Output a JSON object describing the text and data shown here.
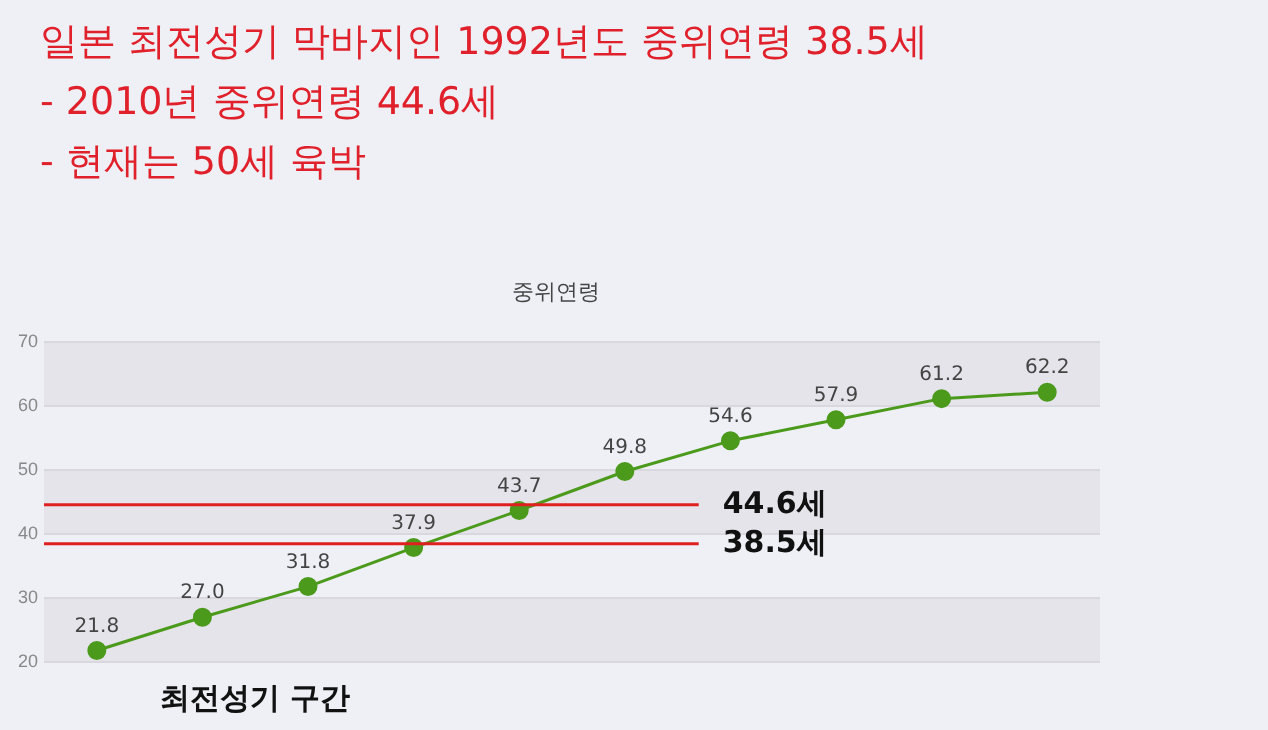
{
  "chart_data": {
    "type": "line",
    "title": "중위연령",
    "categories": [
      null,
      null,
      null,
      null,
      null,
      null,
      null,
      null,
      null,
      null
    ],
    "series": [
      {
        "color": "#4c9a1c",
        "values": [
          21.8,
          27.0,
          31.8,
          37.9,
          43.7,
          49.8,
          54.6,
          57.9,
          61.2,
          62.2
        ],
        "value_labels": [
          "21.8",
          "27.0",
          "31.8",
          "37.9",
          "43.7",
          "49.8",
          "54.6",
          "57.9",
          "61.2",
          "62.2"
        ]
      }
    ],
    "ylim": [
      20,
      70
    ],
    "yticks": [
      20,
      30,
      40,
      50,
      60,
      70
    ],
    "grid": "y",
    "marker": "circle",
    "legend": false,
    "tick_labels": "y",
    "ref_lines": [
      {
        "axis": "y",
        "value": 44.6,
        "label": "44.6세",
        "color": "#e02020"
      },
      {
        "axis": "y",
        "value": 38.5,
        "label": "38.5세",
        "color": "#e02020"
      }
    ],
    "annotations": [
      "일본 최전성기 막바지인 1992년도 중위연령 38.5세",
      "-   2010년 중위연령 44.6세",
      "-   현재는 50세 육박",
      "최전성기 구간"
    ]
  }
}
